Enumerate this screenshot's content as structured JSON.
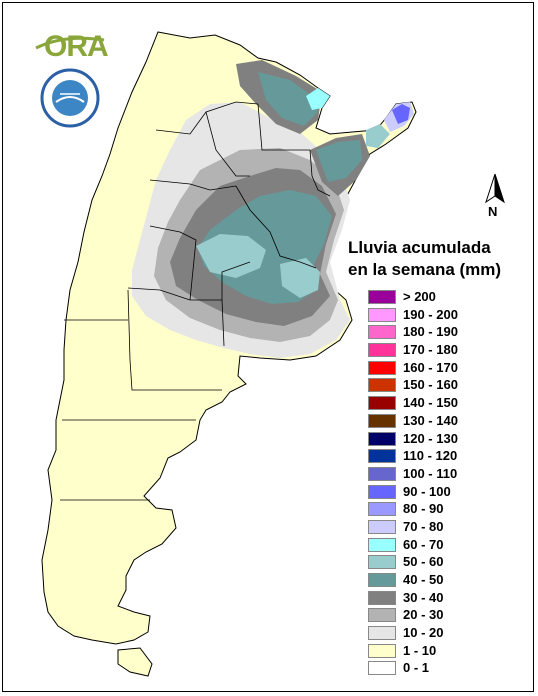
{
  "legend": {
    "title_line1": "Lluvia acumulada",
    "title_line2": "en la semana (mm)",
    "entries": [
      {
        "label": "> 200",
        "color": "#990099"
      },
      {
        "label": "190 - 200",
        "color": "#ff99ff"
      },
      {
        "label": "180 - 190",
        "color": "#ff66cc"
      },
      {
        "label": "170 - 180",
        "color": "#ff3399"
      },
      {
        "label": "160 - 170",
        "color": "#ff0000"
      },
      {
        "label": "150 - 160",
        "color": "#cc3300"
      },
      {
        "label": "140 - 150",
        "color": "#990000"
      },
      {
        "label": "130 - 140",
        "color": "#663300"
      },
      {
        "label": "120 - 130",
        "color": "#000066"
      },
      {
        "label": "110 - 120",
        "color": "#003399"
      },
      {
        "label": "100 - 110",
        "color": "#6666cc"
      },
      {
        "label": "90 - 100",
        "color": "#6666ff"
      },
      {
        "label": "80 - 90",
        "color": "#9999ff"
      },
      {
        "label": "70 - 80",
        "color": "#ccccff"
      },
      {
        "label": "60 - 70",
        "color": "#99ffff"
      },
      {
        "label": "50 - 60",
        "color": "#99cccc"
      },
      {
        "label": "40 - 50",
        "color": "#669999"
      },
      {
        "label": "30 - 40",
        "color": "#808080"
      },
      {
        "label": "20 - 30",
        "color": "#b3b3b3"
      },
      {
        "label": "10 - 20",
        "color": "#e6e6e6"
      },
      {
        "label": "1 - 10",
        "color": "#ffffcc"
      },
      {
        "label": "0 - 1",
        "color": "#ffffff"
      }
    ]
  },
  "north_label": "N",
  "logo_text": "ORA",
  "colors": {
    "land_base": "#ffffcc",
    "border": "#000000"
  }
}
